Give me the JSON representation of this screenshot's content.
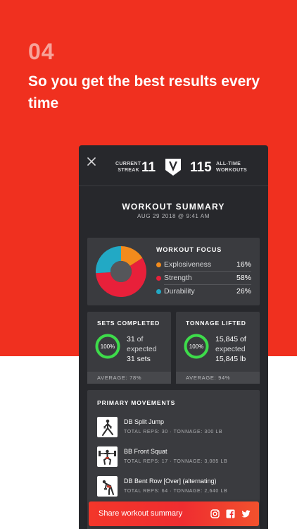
{
  "hero": {
    "step_number": "04",
    "headline": "So you get the best results every time",
    "background_color": "#f0301f"
  },
  "header": {
    "current_streak_label_line1": "CURRENT",
    "current_streak_label_line2": "STREAK",
    "current_streak_value": "11",
    "alltime_value": "115",
    "alltime_label_line1": "ALL-TIME",
    "alltime_label_line2": "WORKOUTS",
    "logo_icon": "v-shield-logo-icon",
    "close_icon": "close-icon"
  },
  "summary": {
    "title": "WORKOUT SUMMARY",
    "date": "AUG 29 2018 @ 9:41 AM"
  },
  "focus": {
    "title": "WORKOUT FOCUS",
    "items": [
      {
        "label": "Explosiveness",
        "percent": "16%",
        "value": 16,
        "color": "#f28b1c"
      },
      {
        "label": "Strength",
        "percent": "58%",
        "value": 58,
        "color": "#e8203a"
      },
      {
        "label": "Durability",
        "percent": "26%",
        "value": 26,
        "color": "#22a9c5"
      }
    ]
  },
  "sets": {
    "title": "SETS COMPLETED",
    "ring_label": "100%",
    "ring_fraction": 1.0,
    "line1_value": "31",
    "line1_suffix": "of",
    "line2": "expected",
    "line3": "31 sets",
    "footer": "AVERAGE: 78%"
  },
  "tonnage": {
    "title": "TONNAGE LIFTED",
    "ring_label": "100%",
    "ring_fraction": 1.0,
    "line1": "15,845 of",
    "line2": "expected",
    "line3": "15,845 lb",
    "footer": "AVERAGE: 94%"
  },
  "ring_color": "#3ddc4a",
  "movements": {
    "title": "PRIMARY MOVEMENTS",
    "items": [
      {
        "name": "DB Split Jump",
        "stats": "TOTAL REPS: 30 · TONNAGE: 300 LB"
      },
      {
        "name": "BB Front Squat",
        "stats": "TOTAL REPS: 17 · TONNAGE: 3,085 LB"
      },
      {
        "name": "DB Bent Row [Over] (alternating)",
        "stats": "TOTAL REPS: 64 · TONNAGE: 2,640 LB"
      }
    ]
  },
  "share": {
    "label": "Share workout summary",
    "icons": [
      "instagram-icon",
      "facebook-icon",
      "twitter-icon"
    ]
  }
}
